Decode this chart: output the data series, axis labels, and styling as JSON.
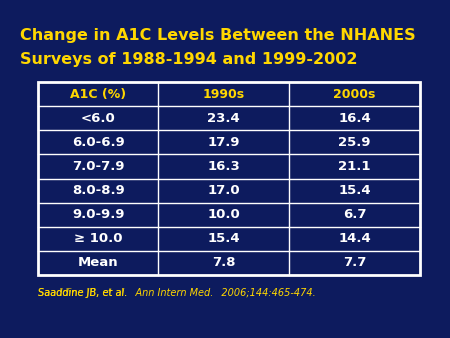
{
  "title_line1": "Change in A1C Levels Between the NHANES",
  "title_line2": "Surveys of 1988-1994 and 1999-2002",
  "title_color": "#FFD700",
  "background_color": "#0D1B5E",
  "table_border_color": "#FFFFFF",
  "header_text_color": "#FFD700",
  "data_text_color": "#FFFFFF",
  "col_headers": [
    "A1C (%)",
    "1990s",
    "2000s"
  ],
  "rows": [
    [
      "<6.0",
      "23.4",
      "16.4"
    ],
    [
      "6.0-6.9",
      "17.9",
      "25.9"
    ],
    [
      "7.0-7.9",
      "16.3",
      "21.1"
    ],
    [
      "8.0-8.9",
      "17.0",
      "15.4"
    ],
    [
      "9.0-9.9",
      "10.0",
      "6.7"
    ],
    [
      "≥ 10.0",
      "15.4",
      "14.4"
    ],
    [
      "Mean",
      "7.8",
      "7.7"
    ]
  ],
  "footnote_normal": "Saaddine JB, et al. ",
  "footnote_italic": "Ann Intern Med.",
  "footnote_normal2": " 2006;144:465-474.",
  "footnote_color": "#FFD700",
  "footnote_fontsize": 7.0,
  "title_fontsize": 11.5,
  "header_fontsize": 9.0,
  "data_fontsize": 9.5
}
